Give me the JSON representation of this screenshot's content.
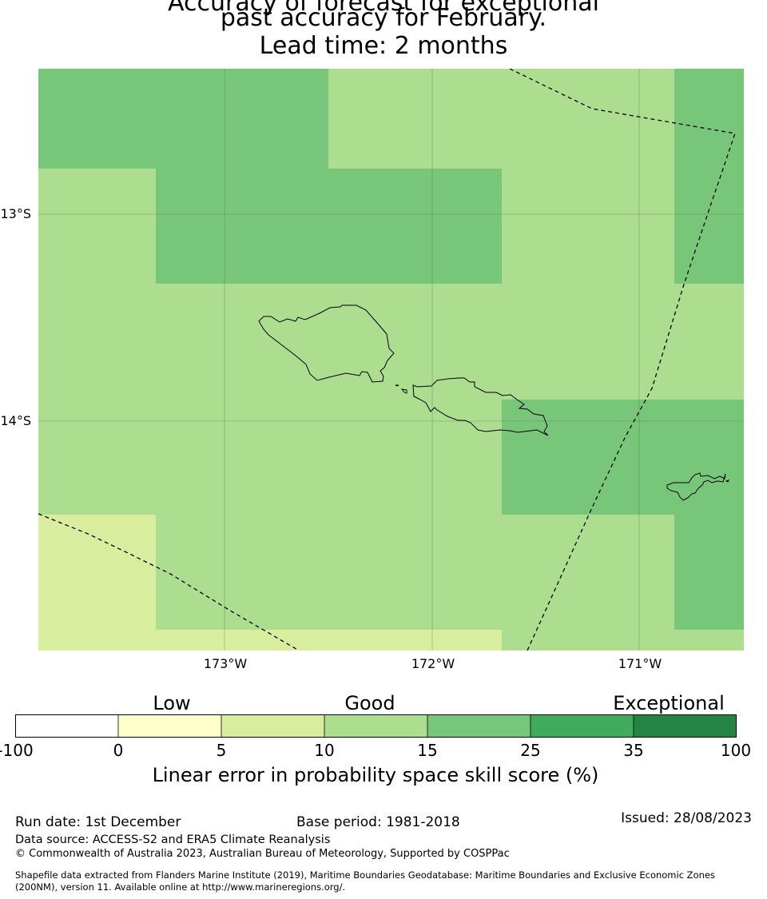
{
  "title": {
    "line1": "Accuracy of forecast for exceptional",
    "line2": "past accuracy for February.",
    "line3": "Lead time: 2 months"
  },
  "map": {
    "lat_labels": [
      "13°S",
      "14°S"
    ],
    "lon_labels": [
      "173°W",
      "172°W",
      "171°W"
    ],
    "colors": {
      "band_5_10": "#d9ed9f",
      "band_10_15": "#addd8e",
      "band_15_25": "#78c679",
      "band_25_35": "#41ab5d",
      "band_35_100": "#238443"
    }
  },
  "legend": {
    "categories": [
      "Low",
      "Good",
      "Exceptional"
    ],
    "ticks": [
      "-100",
      "0",
      "5",
      "10",
      "15",
      "25",
      "35",
      "100"
    ],
    "colors": [
      "#ffffff",
      "#ffffcc",
      "#d9ed9f",
      "#addd8e",
      "#78c679",
      "#41ab5d",
      "#238443"
    ],
    "label": "Linear error in probability space skill score (%)"
  },
  "footer": {
    "run_date": "Run date: 1st December",
    "base_period": "Base period: 1981-2018",
    "issued": "Issued: 28/08/2023",
    "data_source": "Data source: ACCESS-S2 and ERA5 Climate Reanalysis",
    "copyright": "© Commonwealth of Australia 2023, Australian Bureau of Meteorology, Supported by COSPPac",
    "shapefile_line1": "Shapefile data extracted from Flanders Marine Institute (2019), Maritime Boundaries Geodatabase: Maritime Boundaries and Exclusive Economic Zones",
    "shapefile_line2": "(200NM), version 11. Available online at http://www.marineregions.org/."
  }
}
